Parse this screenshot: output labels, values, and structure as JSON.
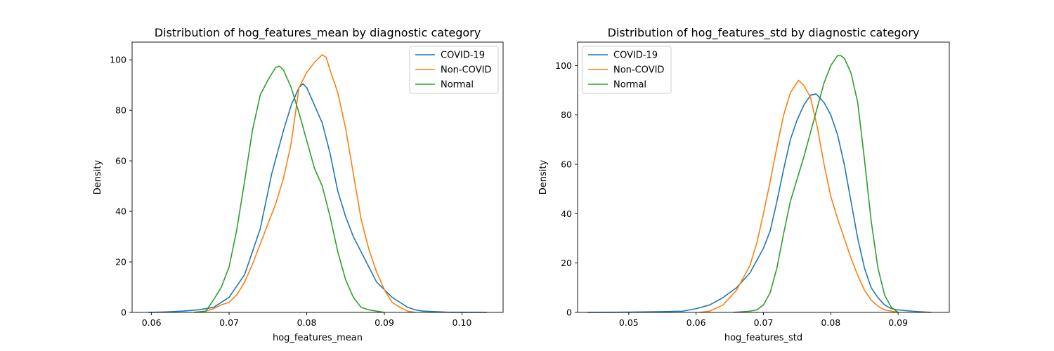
{
  "chart_data": [
    {
      "type": "line",
      "title": "Distribution of hog_features_mean by diagnostic category",
      "xlabel": "hog_features_mean",
      "ylabel": "Density",
      "xlim": [
        0.0575,
        0.1053
      ],
      "ylim": [
        0,
        107
      ],
      "xticks": [
        {
          "value": 0.06,
          "label": "0.06"
        },
        {
          "value": 0.07,
          "label": "0.07"
        },
        {
          "value": 0.08,
          "label": "0.08"
        },
        {
          "value": 0.09,
          "label": "0.09"
        },
        {
          "value": 0.1,
          "label": "0.10"
        }
      ],
      "yticks": [
        {
          "value": 0,
          "label": "0"
        },
        {
          "value": 20,
          "label": "20"
        },
        {
          "value": 40,
          "label": "40"
        },
        {
          "value": 60,
          "label": "60"
        },
        {
          "value": 80,
          "label": "80"
        },
        {
          "value": 100,
          "label": "100"
        }
      ],
      "legend_position": "top-right",
      "series": [
        {
          "name": "COVID-19",
          "color": "#1f77b4",
          "points": [
            [
              0.0596,
              0
            ],
            [
              0.062,
              0.2
            ],
            [
              0.064,
              0.5
            ],
            [
              0.066,
              1
            ],
            [
              0.068,
              2
            ],
            [
              0.07,
              6
            ],
            [
              0.072,
              15
            ],
            [
              0.074,
              33
            ],
            [
              0.0755,
              55
            ],
            [
              0.077,
              72
            ],
            [
              0.078,
              82
            ],
            [
              0.079,
              89
            ],
            [
              0.0795,
              90.5
            ],
            [
              0.08,
              89
            ],
            [
              0.081,
              82
            ],
            [
              0.082,
              75
            ],
            [
              0.083,
              63
            ],
            [
              0.084,
              48
            ],
            [
              0.085,
              38
            ],
            [
              0.086,
              30
            ],
            [
              0.087,
              24
            ],
            [
              0.088,
              18
            ],
            [
              0.089,
              12
            ],
            [
              0.09,
              9
            ],
            [
              0.091,
              6
            ],
            [
              0.092,
              4
            ],
            [
              0.093,
              2
            ],
            [
              0.094,
              1
            ],
            [
              0.095,
              0.5
            ],
            [
              0.098,
              0.1
            ],
            [
              0.1032,
              0
            ]
          ]
        },
        {
          "name": "Non-COVID",
          "color": "#ff7f0e",
          "points": [
            [
              0.0655,
              0
            ],
            [
              0.067,
              0.5
            ],
            [
              0.068,
              1.5
            ],
            [
              0.069,
              3
            ],
            [
              0.07,
              4
            ],
            [
              0.071,
              7
            ],
            [
              0.072,
              12
            ],
            [
              0.073,
              19
            ],
            [
              0.074,
              27
            ],
            [
              0.075,
              35
            ],
            [
              0.076,
              43
            ],
            [
              0.077,
              53
            ],
            [
              0.078,
              67
            ],
            [
              0.0785,
              78
            ],
            [
              0.079,
              89
            ],
            [
              0.08,
              95
            ],
            [
              0.081,
              99
            ],
            [
              0.082,
              102
            ],
            [
              0.0825,
              101
            ],
            [
              0.083,
              96
            ],
            [
              0.084,
              87
            ],
            [
              0.085,
              73
            ],
            [
              0.086,
              55
            ],
            [
              0.087,
              37
            ],
            [
              0.088,
              25
            ],
            [
              0.089,
              16
            ],
            [
              0.09,
              9
            ],
            [
              0.091,
              4
            ],
            [
              0.092,
              2
            ],
            [
              0.093,
              0.5
            ],
            [
              0.094,
              0
            ]
          ]
        },
        {
          "name": "Normal",
          "color": "#2ca02c",
          "points": [
            [
              0.0655,
              0
            ],
            [
              0.067,
              0.5
            ],
            [
              0.068,
              5
            ],
            [
              0.069,
              10
            ],
            [
              0.07,
              18
            ],
            [
              0.071,
              33
            ],
            [
              0.072,
              52
            ],
            [
              0.073,
              72
            ],
            [
              0.074,
              86
            ],
            [
              0.075,
              92
            ],
            [
              0.076,
              97
            ],
            [
              0.0765,
              97.5
            ],
            [
              0.077,
              96
            ],
            [
              0.078,
              89
            ],
            [
              0.079,
              79
            ],
            [
              0.08,
              68
            ],
            [
              0.081,
              57
            ],
            [
              0.082,
              50
            ],
            [
              0.083,
              38
            ],
            [
              0.084,
              24
            ],
            [
              0.085,
              13
            ],
            [
              0.086,
              6
            ],
            [
              0.087,
              2
            ],
            [
              0.088,
              1
            ],
            [
              0.089,
              0.5
            ],
            [
              0.09,
              0
            ]
          ]
        }
      ]
    },
    {
      "type": "line",
      "title": "Distribution of hog_features_std by diagnostic category",
      "xlabel": "hog_features_std",
      "ylabel": "Density",
      "xlim": [
        0.0424,
        0.0976
      ],
      "ylim": [
        0,
        109.5
      ],
      "xticks": [
        {
          "value": 0.05,
          "label": "0.05"
        },
        {
          "value": 0.06,
          "label": "0.06"
        },
        {
          "value": 0.07,
          "label": "0.07"
        },
        {
          "value": 0.08,
          "label": "0.08"
        },
        {
          "value": 0.09,
          "label": "0.09"
        }
      ],
      "yticks": [
        {
          "value": 0,
          "label": "0"
        },
        {
          "value": 20,
          "label": "20"
        },
        {
          "value": 40,
          "label": "40"
        },
        {
          "value": 60,
          "label": "60"
        },
        {
          "value": 80,
          "label": "80"
        },
        {
          "value": 100,
          "label": "100"
        }
      ],
      "legend_position": "top-left",
      "series": [
        {
          "name": "COVID-19",
          "color": "#1f77b4",
          "points": [
            [
              0.0439,
              0
            ],
            [
              0.05,
              0.1
            ],
            [
              0.055,
              0.3
            ],
            [
              0.058,
              0.5
            ],
            [
              0.06,
              1.5
            ],
            [
              0.062,
              3
            ],
            [
              0.064,
              6
            ],
            [
              0.066,
              10
            ],
            [
              0.068,
              16
            ],
            [
              0.069,
              21
            ],
            [
              0.07,
              26
            ],
            [
              0.071,
              33
            ],
            [
              0.072,
              45
            ],
            [
              0.073,
              58
            ],
            [
              0.074,
              70
            ],
            [
              0.075,
              78
            ],
            [
              0.076,
              84
            ],
            [
              0.077,
              88
            ],
            [
              0.0778,
              88.5
            ],
            [
              0.078,
              88
            ],
            [
              0.079,
              85
            ],
            [
              0.08,
              80
            ],
            [
              0.081,
              72
            ],
            [
              0.082,
              60
            ],
            [
              0.083,
              45
            ],
            [
              0.084,
              30
            ],
            [
              0.085,
              18
            ],
            [
              0.086,
              10
            ],
            [
              0.087,
              6
            ],
            [
              0.088,
              3
            ],
            [
              0.089,
              1.5
            ],
            [
              0.09,
              1
            ],
            [
              0.092,
              0.5
            ],
            [
              0.0949,
              0
            ]
          ]
        },
        {
          "name": "Non-COVID",
          "color": "#ff7f0e",
          "points": [
            [
              0.0605,
              0
            ],
            [
              0.062,
              0.5
            ],
            [
              0.064,
              3
            ],
            [
              0.066,
              9
            ],
            [
              0.068,
              19
            ],
            [
              0.069,
              28
            ],
            [
              0.07,
              40
            ],
            [
              0.071,
              53
            ],
            [
              0.072,
              67
            ],
            [
              0.073,
              80
            ],
            [
              0.074,
              89
            ],
            [
              0.0752,
              94
            ],
            [
              0.076,
              92
            ],
            [
              0.077,
              87
            ],
            [
              0.078,
              75
            ],
            [
              0.079,
              60
            ],
            [
              0.08,
              47
            ],
            [
              0.081,
              38
            ],
            [
              0.082,
              30
            ],
            [
              0.083,
              22
            ],
            [
              0.084,
              15
            ],
            [
              0.085,
              9
            ],
            [
              0.086,
              5
            ],
            [
              0.087,
              2.5
            ],
            [
              0.088,
              1
            ],
            [
              0.089,
              0.5
            ],
            [
              0.09,
              0
            ]
          ]
        },
        {
          "name": "Normal",
          "color": "#2ca02c",
          "points": [
            [
              0.0655,
              0
            ],
            [
              0.068,
              0.5
            ],
            [
              0.069,
              1
            ],
            [
              0.07,
              3
            ],
            [
              0.071,
              8
            ],
            [
              0.072,
              18
            ],
            [
              0.073,
              32
            ],
            [
              0.074,
              45
            ],
            [
              0.075,
              54
            ],
            [
              0.076,
              63
            ],
            [
              0.077,
              73
            ],
            [
              0.078,
              83
            ],
            [
              0.079,
              93
            ],
            [
              0.08,
              100
            ],
            [
              0.081,
              104
            ],
            [
              0.0815,
              104
            ],
            [
              0.082,
              103
            ],
            [
              0.083,
              97
            ],
            [
              0.084,
              85
            ],
            [
              0.085,
              62
            ],
            [
              0.086,
              37
            ],
            [
              0.087,
              18
            ],
            [
              0.088,
              7
            ],
            [
              0.089,
              2
            ],
            [
              0.09,
              0
            ]
          ]
        }
      ]
    }
  ]
}
